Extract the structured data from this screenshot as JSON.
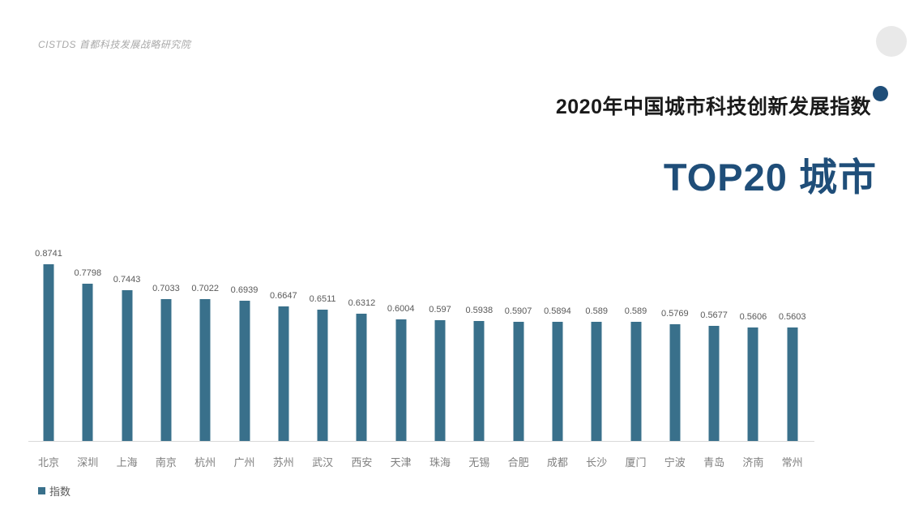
{
  "header": {
    "logo_text": "CISTDS 首都科技发展战略研究院",
    "title_line1": "2020年中国城市科技创新发展指数",
    "title_line2": "TOP20 城市"
  },
  "legend": {
    "label": "指数"
  },
  "colors": {
    "bar": "#39708b",
    "accent_blue": "#1f4e79",
    "title_black": "#1a1a1a",
    "axis_line": "#d9d9d9",
    "value_label": "#595959",
    "city_label": "#7f7f7f",
    "corner_circle": "#e9e9e9"
  },
  "chart_data": {
    "type": "bar",
    "title": "2020年中国城市科技创新发展指数 TOP20 城市",
    "xlabel": "",
    "ylabel": "",
    "ylim": [
      0,
      0.9
    ],
    "grid": false,
    "value_labels": true,
    "legend_position": "bottom-left",
    "series_name": "指数",
    "categories": [
      "北京",
      "深圳",
      "上海",
      "南京",
      "杭州",
      "广州",
      "苏州",
      "武汉",
      "西安",
      "天津",
      "珠海",
      "无锡",
      "合肥",
      "成都",
      "长沙",
      "厦门",
      "宁波",
      "青岛",
      "济南",
      "常州"
    ],
    "values": [
      0.8741,
      0.7798,
      0.7443,
      0.7033,
      0.7022,
      0.6939,
      0.6647,
      0.6511,
      0.6312,
      0.6004,
      0.597,
      0.5938,
      0.5907,
      0.5894,
      0.589,
      0.589,
      0.5769,
      0.5677,
      0.5606,
      0.5603
    ]
  }
}
